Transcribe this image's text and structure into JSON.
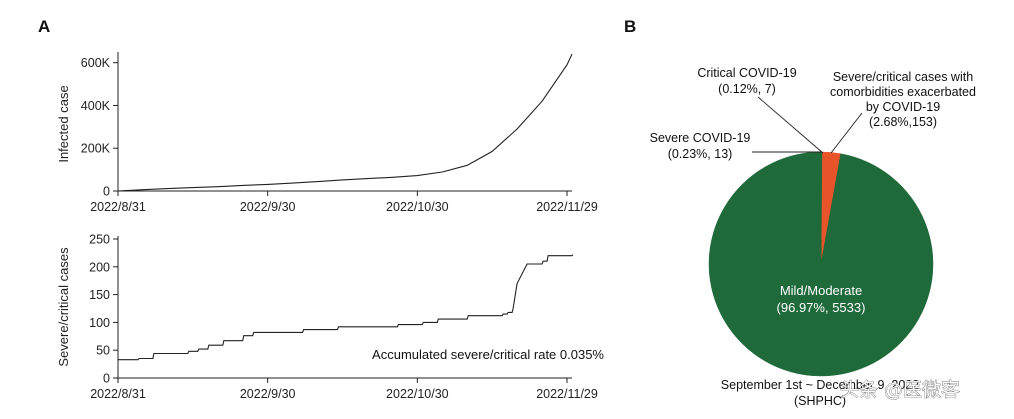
{
  "panels": {
    "a_letter": "A",
    "b_letter": "B"
  },
  "chart_data": [
    {
      "id": "A-top",
      "type": "line",
      "title": "",
      "xlabel": "",
      "ylabel": "Infected case",
      "x_tick_labels": [
        "2022/8/31",
        "2022/9/30",
        "2022/10/30",
        "2022/11/29"
      ],
      "x_tick_days": [
        0,
        30,
        60,
        90
      ],
      "y_ticks": [
        0,
        200000,
        400000,
        600000
      ],
      "y_tick_labels": [
        "0",
        "200K",
        "400K",
        "600K"
      ],
      "ylim": [
        0,
        650000
      ],
      "xlim": [
        0,
        91
      ],
      "grid": false,
      "series": [
        {
          "name": "",
          "x": [
            "2022/8/31",
            "2022/9/5",
            "2022/9/10",
            "2022/9/15",
            "2022/9/20",
            "2022/9/25",
            "2022/9/30",
            "2022/10/5",
            "2022/10/10",
            "2022/10/15",
            "2022/10/20",
            "2022/10/25",
            "2022/10/30",
            "2022/11/4",
            "2022/11/9",
            "2022/11/14",
            "2022/11/19",
            "2022/11/24",
            "2022/11/29",
            "2022/11/30"
          ],
          "x_days": [
            0,
            5,
            10,
            15,
            20,
            25,
            30,
            35,
            40,
            45,
            50,
            55,
            60,
            65,
            70,
            75,
            80,
            85,
            90,
            91
          ],
          "values": [
            0,
            6000,
            11000,
            16000,
            20000,
            26000,
            31000,
            37000,
            44000,
            52000,
            58000,
            64000,
            72000,
            89000,
            120000,
            185000,
            290000,
            420000,
            590000,
            640000
          ]
        }
      ]
    },
    {
      "id": "A-bottom",
      "type": "line",
      "title": "",
      "xlabel": "",
      "ylabel": "Severe/critical cases",
      "x_tick_labels": [
        "2022/8/31",
        "2022/9/30",
        "2022/10/30",
        "2022/11/29"
      ],
      "x_tick_days": [
        0,
        30,
        60,
        90
      ],
      "y_ticks": [
        0,
        50,
        100,
        150,
        200,
        250
      ],
      "y_tick_labels": [
        "0",
        "50",
        "100",
        "150",
        "200",
        "250"
      ],
      "ylim": [
        0,
        250
      ],
      "xlim": [
        0,
        91
      ],
      "grid": false,
      "annotation": "Accumulated severe/critical rate 0.035%",
      "series": [
        {
          "name": "",
          "x_days": [
            0,
            3,
            4,
            7,
            12,
            14,
            16,
            18,
            21,
            25,
            27,
            30,
            35,
            37,
            43,
            44,
            52,
            55,
            56,
            61,
            63,
            64,
            70,
            76,
            77,
            78,
            79,
            80,
            82,
            85,
            86,
            91
          ],
          "values": [
            33,
            33,
            35,
            44,
            44,
            48,
            52,
            59,
            67,
            76,
            82,
            82,
            82,
            87,
            87,
            92,
            92,
            92,
            96,
            100,
            100,
            106,
            112,
            112,
            115,
            118,
            125,
            170,
            205,
            210,
            220,
            222
          ]
        }
      ]
    },
    {
      "id": "B",
      "type": "pie",
      "title": "",
      "slices": [
        {
          "label": "Mild/Moderate",
          "percent": 96.97,
          "count": 5533,
          "text": "(96.97%, 5533)",
          "color": "#1e6a3a"
        },
        {
          "label": "Severe COVID-19",
          "percent": 0.23,
          "count": 13,
          "text": "(0.23%, 13)",
          "color": "#1e6a3a"
        },
        {
          "label": "Critical COVID-19",
          "percent": 0.12,
          "count": 7,
          "text": "(0.12%, 7)",
          "color": "#1e6a3a"
        },
        {
          "label_lines": [
            "Severe/critical cases with",
            "comorbidities exacerbated",
            "by COVID-19"
          ],
          "percent": 2.68,
          "count": 153,
          "text": "(2.68%,153)",
          "color": "#e8542a"
        }
      ],
      "labels": {
        "mild_name": "Mild/Moderate",
        "mild_val": "(96.97%, 5533)",
        "severe_name": "Severe COVID-19",
        "severe_val": "(0.23%, 13)",
        "critical_name": "Critical COVID-19",
        "critical_val": "(0.12%, 7)",
        "comorb_l1": "Severe/critical cases with",
        "comorb_l2": "comorbidities exacerbated",
        "comorb_l3": "by COVID-19",
        "comorb_val": "(2.68%,153)"
      },
      "footnote_line1": "September 1st ~ December 9, 2022",
      "footnote_line2": "(SHPHC)"
    }
  ],
  "watermark": "头条 @医微客"
}
